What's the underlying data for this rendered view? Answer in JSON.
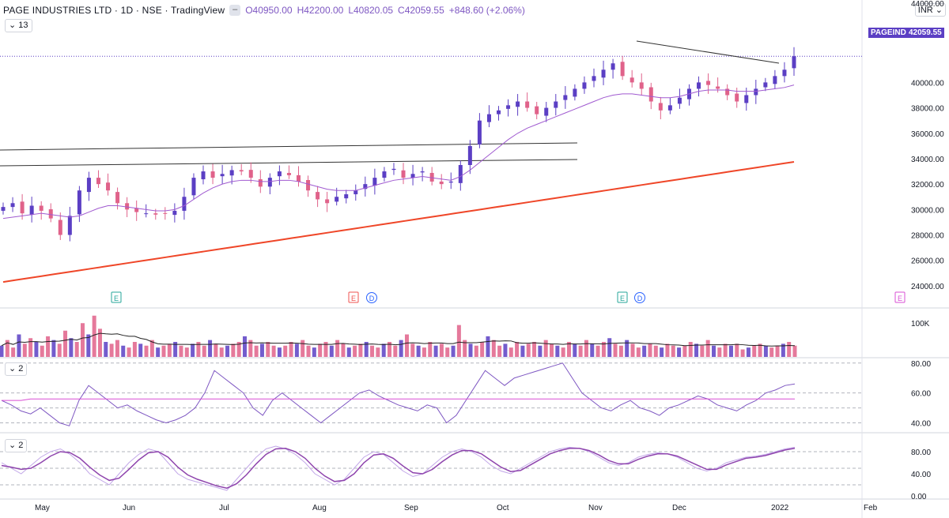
{
  "header": {
    "title": "PAGE INDUSTRIES LTD · 1D · NSE · TradingView",
    "open": "O40950.00",
    "high": "H42200.00",
    "low": "L40820.05",
    "close": "C42059.55",
    "change": "+848.60 (+2.06%)"
  },
  "currency": "INR",
  "indicator_labels": {
    "ma_length": "13",
    "rsi_length": "2",
    "stoch_length": "2"
  },
  "price_label": {
    "symbol": "PAGEIND",
    "value": "42059.55"
  },
  "top_partial_tick": "44000.00",
  "colors": {
    "up": "#5b3fc4",
    "down": "#e0628a",
    "ma_short": "#a05ad0",
    "ma_long": "#ef4628",
    "trendline": "#333333",
    "rsi": "#7e57c2",
    "rsi_signal": "#d94fd4",
    "stoch_k": "#8e44ad",
    "stoch_d": "#c2a7e8"
  },
  "events": [
    {
      "type": "E",
      "month": "May",
      "color": "#26a69a"
    },
    {
      "type": "E",
      "month": "Aug",
      "color": "#ef5350"
    },
    {
      "type": "D",
      "month": "Aug",
      "color": "#2962ff"
    },
    {
      "type": "E",
      "month": "Nov",
      "color": "#26a69a"
    },
    {
      "type": "D",
      "month": "Nov",
      "color": "#2962ff"
    },
    {
      "type": "E",
      "month": "Feb",
      "color": "#d94fd4"
    }
  ],
  "chart_data": [
    {
      "type": "line",
      "title": "PAGE INDUSTRIES LTD, 1D, NSE",
      "x_ticks": [
        "May",
        "Jun",
        "Jul",
        "Aug",
        "Sep",
        "Oct",
        "Nov",
        "Dec",
        "2022",
        "Feb"
      ],
      "y_ticks": [
        "24000.00",
        "26000.00",
        "28000.00",
        "30000.00",
        "32000.00",
        "34000.00",
        "36000.00",
        "38000.00",
        "40000.00"
      ],
      "ylim": [
        23000,
        44000
      ],
      "series": [
        {
          "values": [
            30200,
            30500,
            29700,
            30300,
            29900,
            29300,
            28000,
            29500,
            31500,
            32500,
            32000,
            31500,
            30500,
            30000,
            29800,
            29700,
            29600,
            29700,
            29900,
            31000,
            32500,
            33000,
            32500,
            32800,
            33100,
            33000,
            32500,
            31800,
            32500,
            33000,
            32700,
            32200,
            31500,
            30800,
            30500,
            31000,
            31200,
            31500,
            32000,
            32500,
            33000,
            33200,
            32500,
            32800,
            33000,
            32200,
            32000,
            32200,
            33500,
            35000,
            37000,
            37500,
            37800,
            38200,
            38500,
            38000,
            37500,
            38000,
            38500,
            39000,
            39500,
            40000,
            40500,
            41000,
            41500,
            40500,
            40000,
            39500,
            38500,
            37800,
            38200,
            38800,
            39500,
            40000,
            39800,
            39500,
            39000,
            38500,
            39000,
            39500,
            40000,
            40500,
            41000,
            42059.55
          ]
        },
        {
          "values": [
            29300,
            29400,
            29500,
            29600,
            29700,
            29600,
            29500,
            29400,
            29500,
            29800,
            30100,
            30300,
            30300,
            30200,
            30100,
            30000,
            29900,
            29900,
            30000,
            30300,
            30800,
            31300,
            31700,
            32000,
            32200,
            32300,
            32300,
            32200,
            32200,
            32300,
            32300,
            32200,
            32000,
            31800,
            31600,
            31500,
            31500,
            31500,
            31700,
            31900,
            32100,
            32300,
            32400,
            32500,
            32600,
            32500,
            32400,
            32300,
            32600,
            33100,
            33700,
            34300,
            34900,
            35500,
            36000,
            36400,
            36700,
            37000,
            37300,
            37600,
            37900,
            38200,
            38500,
            38800,
            39000,
            39100,
            39100,
            39000,
            38900,
            38800,
            38800,
            38900,
            39100,
            39300,
            39400,
            39400,
            39400,
            39300,
            39300,
            39300,
            39400,
            39500,
            39600,
            39800
          ]
        },
        {
          "values": [
            24300,
            24450,
            24600,
            24750,
            24900,
            25050,
            25200,
            25350,
            25500,
            25650,
            25800,
            25950,
            26100,
            26250,
            26400,
            26550,
            26700,
            26850,
            27000,
            27150,
            27300,
            27450,
            27600,
            27750,
            27900,
            28050,
            28200,
            28350,
            28500,
            28650,
            28800,
            28950,
            29100,
            29250,
            29400,
            29550,
            29700,
            29850,
            30000,
            30150,
            30300,
            30450,
            30600,
            30750,
            30900,
            31050,
            31200,
            31350,
            31500,
            31650,
            31800,
            31950,
            32100,
            32250,
            32400,
            32550,
            32700,
            32850,
            33000,
            33150,
            33300,
            33450,
            33600,
            33750
          ]
        }
      ]
    },
    {
      "type": "bar",
      "y_ticks": [
        "100K"
      ],
      "values": [
        30,
        45,
        25,
        60,
        35,
        50,
        40,
        30,
        55,
        45,
        35,
        70,
        50,
        40,
        90,
        60,
        110,
        75,
        40,
        35,
        45,
        30,
        25,
        40,
        35,
        30,
        45,
        25,
        30,
        35,
        40,
        30,
        25,
        35,
        40,
        30,
        45,
        35,
        25,
        30,
        35,
        40,
        55,
        45,
        30,
        35,
        40,
        30,
        25,
        30,
        40,
        35,
        45,
        30,
        25,
        35,
        40,
        30,
        45,
        35,
        25,
        30,
        35,
        40,
        30,
        25,
        35,
        40,
        30,
        45,
        60,
        35,
        30,
        25,
        40,
        30,
        35,
        25,
        30,
        85,
        45,
        35,
        30,
        40,
        55,
        45,
        30,
        35,
        25,
        40,
        30,
        35,
        40,
        30,
        45,
        35,
        30,
        25,
        40,
        35,
        30,
        45,
        35,
        30,
        40,
        50,
        35,
        30,
        45,
        35,
        25,
        30,
        35,
        30,
        25,
        35,
        30,
        25,
        30,
        40,
        35,
        30,
        45,
        30,
        25,
        35,
        30,
        35,
        20,
        25,
        30,
        35,
        30,
        25,
        30,
        35,
        40,
        30
      ]
    },
    {
      "type": "line",
      "y_ticks": [
        "80.00",
        "60.00",
        "40.00"
      ],
      "ylim": [
        35,
        82
      ],
      "series": [
        {
          "values": [
            55,
            52,
            48,
            46,
            50,
            45,
            40,
            38,
            55,
            65,
            60,
            55,
            50,
            52,
            48,
            45,
            42,
            40,
            42,
            45,
            50,
            60,
            75,
            70,
            65,
            60,
            50,
            45,
            55,
            60,
            55,
            50,
            45,
            40,
            45,
            50,
            55,
            60,
            62,
            58,
            55,
            52,
            50,
            48,
            52,
            50,
            40,
            45,
            55,
            65,
            75,
            70,
            65,
            70,
            72,
            74,
            76,
            78,
            80,
            70,
            60,
            55,
            50,
            48,
            52,
            55,
            50,
            48,
            45,
            50,
            52,
            55,
            58,
            56,
            52,
            50,
            48,
            52,
            55,
            60,
            62,
            65,
            66
          ]
        },
        {
          "values": [
            55,
            55,
            55,
            56,
            56,
            56,
            56,
            56,
            56,
            56,
            56,
            56,
            56,
            56,
            56,
            56,
            56,
            56,
            56,
            56,
            56,
            56,
            56,
            56,
            56,
            56,
            56,
            56,
            56,
            56,
            56,
            56,
            56,
            56,
            56,
            56,
            56,
            56,
            56,
            56,
            56,
            56,
            56,
            56,
            56,
            56,
            56,
            56,
            56,
            56,
            56,
            56,
            56,
            56,
            56,
            56,
            56,
            56,
            56,
            56,
            56,
            56,
            56,
            56,
            56,
            56,
            56,
            56,
            56,
            56,
            56,
            56,
            56,
            56,
            56,
            56,
            56,
            56,
            56,
            56,
            56,
            56,
            56
          ]
        }
      ]
    },
    {
      "type": "line",
      "y_ticks": [
        "80.00",
        "40.00",
        "0.00"
      ],
      "ylim": [
        0,
        100
      ],
      "series": [
        {
          "values": [
            60,
            50,
            40,
            55,
            70,
            80,
            85,
            75,
            60,
            40,
            30,
            20,
            40,
            60,
            75,
            85,
            80,
            60,
            40,
            30,
            25,
            20,
            15,
            10,
            30,
            50,
            70,
            85,
            90,
            85,
            75,
            60,
            40,
            30,
            20,
            30,
            50,
            70,
            80,
            75,
            60,
            45,
            35,
            40,
            55,
            70,
            80,
            85,
            80,
            70,
            55,
            45,
            40,
            50,
            60,
            70,
            80,
            85,
            88,
            86,
            80,
            70,
            60,
            55,
            60,
            70,
            75,
            78,
            76,
            70,
            60,
            50,
            45,
            50,
            60,
            65,
            70,
            72,
            75,
            80,
            85,
            88
          ]
        },
        {
          "values": [
            55,
            52,
            48,
            50,
            60,
            72,
            80,
            78,
            68,
            52,
            38,
            28,
            32,
            48,
            65,
            78,
            80,
            70,
            52,
            38,
            30,
            24,
            18,
            14,
            22,
            38,
            58,
            75,
            85,
            86,
            80,
            68,
            50,
            36,
            26,
            28,
            40,
            60,
            74,
            76,
            68,
            54,
            42,
            40,
            48,
            62,
            74,
            82,
            82,
            76,
            64,
            52,
            44,
            46,
            56,
            66,
            76,
            82,
            86,
            86,
            82,
            74,
            64,
            58,
            58,
            66,
            72,
            76,
            76,
            72,
            64,
            56,
            48,
            48,
            56,
            62,
            68,
            70,
            73,
            78,
            83,
            86
          ]
        }
      ]
    }
  ]
}
